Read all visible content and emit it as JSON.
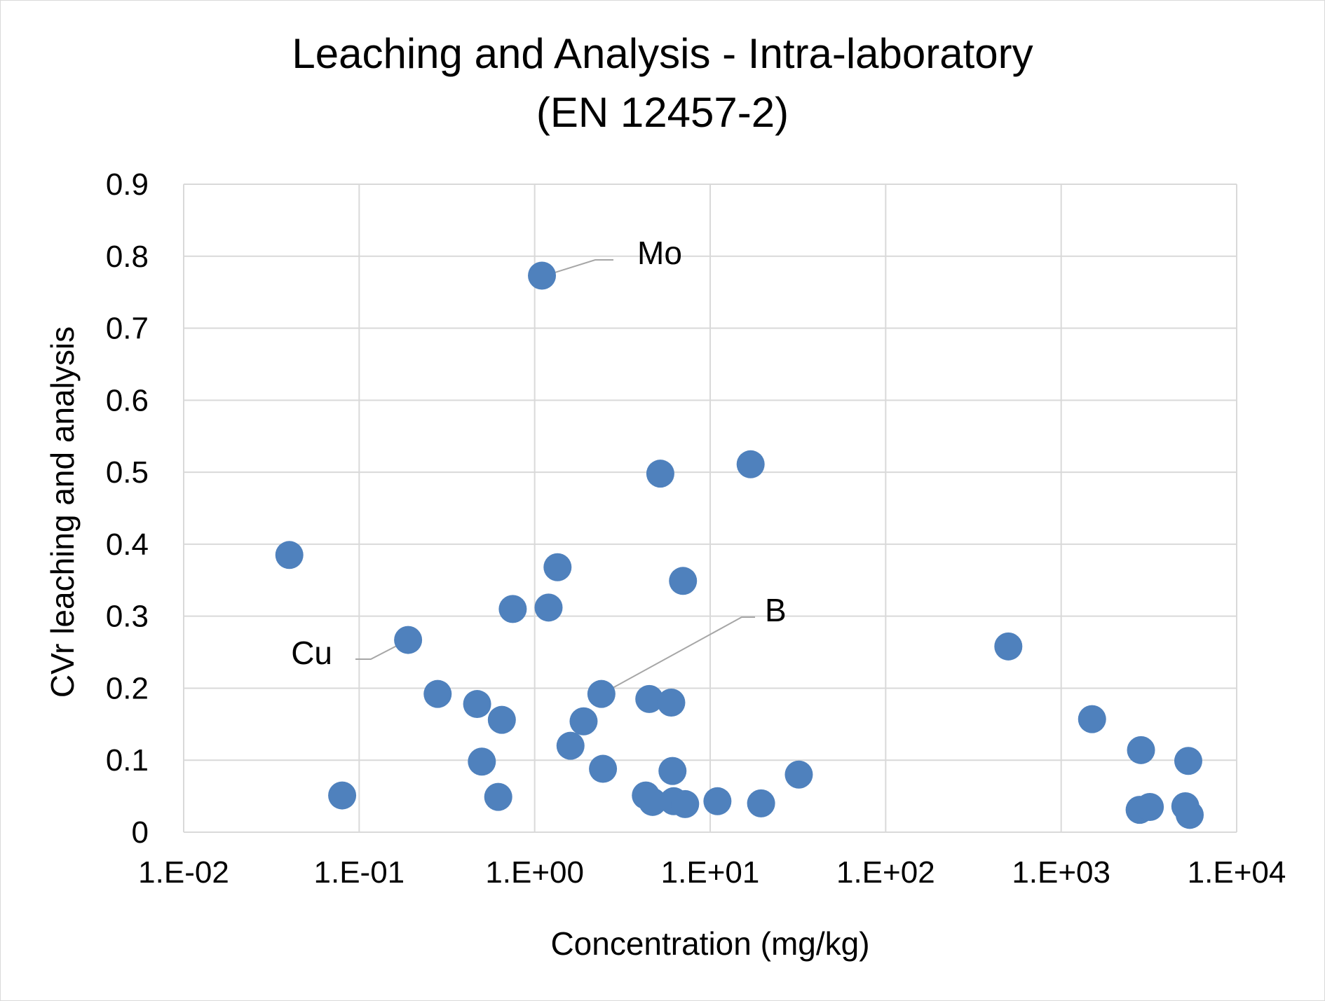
{
  "chart_data": {
    "type": "scatter",
    "title": [
      "Leaching and Analysis - Intra-laboratory",
      "(EN 12457-2)"
    ],
    "xlabel": "Concentration (mg/kg)",
    "ylabel": "CVr leaching and analysis",
    "x_scale": "log",
    "xlim": [
      0.01,
      10000
    ],
    "ylim": [
      0,
      0.9
    ],
    "x_ticks": [
      0.01,
      0.1,
      1,
      10,
      100,
      1000,
      10000
    ],
    "x_tick_labels": [
      "1.E-02",
      "1.E-01",
      "1.E+00",
      "1.E+01",
      "1.E+02",
      "1.E+03",
      "1.E+04"
    ],
    "y_ticks": [
      0,
      0.1,
      0.2,
      0.3,
      0.4,
      0.5,
      0.6,
      0.7,
      0.8,
      0.9
    ],
    "y_tick_labels": [
      "0",
      "0.1",
      "0.2",
      "0.3",
      "0.4",
      "0.5",
      "0.6",
      "0.7",
      "0.8",
      "0.9"
    ],
    "grid": true,
    "legend": "none",
    "marker_color": "#4f81bd",
    "series": [
      {
        "points": [
          {
            "x": 0.04,
            "y": 0.385
          },
          {
            "x": 0.08,
            "y": 0.051
          },
          {
            "x": 0.19,
            "y": 0.267
          },
          {
            "x": 0.28,
            "y": 0.192
          },
          {
            "x": 0.47,
            "y": 0.178
          },
          {
            "x": 0.5,
            "y": 0.098
          },
          {
            "x": 0.62,
            "y": 0.049
          },
          {
            "x": 0.65,
            "y": 0.156
          },
          {
            "x": 0.75,
            "y": 0.31
          },
          {
            "x": 1.1,
            "y": 0.773
          },
          {
            "x": 1.2,
            "y": 0.312
          },
          {
            "x": 1.35,
            "y": 0.368
          },
          {
            "x": 1.6,
            "y": 0.12
          },
          {
            "x": 1.9,
            "y": 0.154
          },
          {
            "x": 2.4,
            "y": 0.192
          },
          {
            "x": 2.45,
            "y": 0.088
          },
          {
            "x": 4.3,
            "y": 0.051
          },
          {
            "x": 4.5,
            "y": 0.185
          },
          {
            "x": 4.7,
            "y": 0.042
          },
          {
            "x": 5.2,
            "y": 0.498
          },
          {
            "x": 6.0,
            "y": 0.18
          },
          {
            "x": 6.1,
            "y": 0.085
          },
          {
            "x": 6.2,
            "y": 0.043
          },
          {
            "x": 7.0,
            "y": 0.349
          },
          {
            "x": 7.2,
            "y": 0.039
          },
          {
            "x": 11.0,
            "y": 0.043
          },
          {
            "x": 17.0,
            "y": 0.511
          },
          {
            "x": 19.5,
            "y": 0.04
          },
          {
            "x": 32.0,
            "y": 0.08
          },
          {
            "x": 500.0,
            "y": 0.258
          },
          {
            "x": 1500.0,
            "y": 0.157
          },
          {
            "x": 2800.0,
            "y": 0.031
          },
          {
            "x": 2850.0,
            "y": 0.114
          },
          {
            "x": 3200.0,
            "y": 0.035
          },
          {
            "x": 5100.0,
            "y": 0.036
          },
          {
            "x": 5300.0,
            "y": 0.099
          },
          {
            "x": 5400.0,
            "y": 0.024
          }
        ]
      }
    ],
    "annotations": [
      {
        "text": "Mo",
        "point_x": 1.1,
        "point_y": 0.773
      },
      {
        "text": "Cu",
        "point_x": 0.19,
        "point_y": 0.267
      },
      {
        "text": "B",
        "point_x": 2.4,
        "point_y": 0.192
      }
    ]
  }
}
